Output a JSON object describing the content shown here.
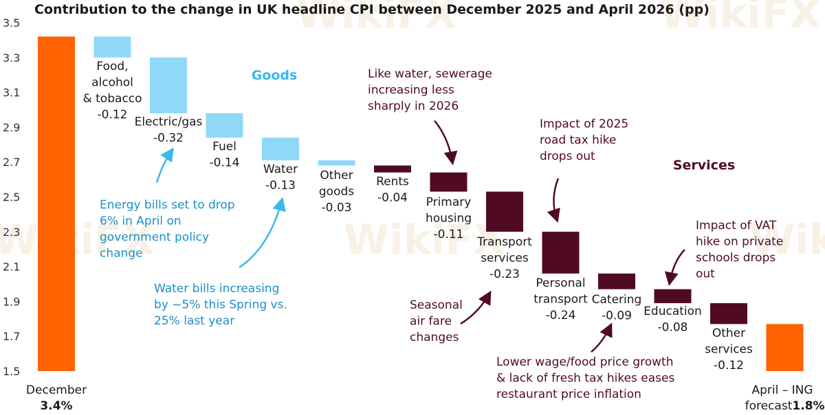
{
  "chart_data": {
    "type": "waterfall",
    "title": "Contribution to the change in UK headline CPI between December 2025 and April 2026 (pp)",
    "ylim": [
      1.5,
      3.5
    ],
    "yticks": [
      "3.5",
      "3.3",
      "3.1",
      "2.9",
      "2.7",
      "2.5",
      "2.3",
      "2.1",
      "1.9",
      "1.7",
      "1.5"
    ],
    "start": {
      "label": "December",
      "value": 3.42,
      "value_label": "3.4%"
    },
    "end": {
      "label_line1": "April – ING",
      "label_line2": "forecast",
      "value": 1.77,
      "value_label": "1.8%"
    },
    "steps": [
      {
        "lines": [
          "Food,",
          "alcohol",
          "& tobacco",
          "-0.12"
        ],
        "value": -0.12,
        "group": "goods"
      },
      {
        "lines": [
          "Electric/gas",
          "-0.32"
        ],
        "value": -0.32,
        "group": "goods"
      },
      {
        "lines": [
          "Fuel",
          "-0.14"
        ],
        "value": -0.14,
        "group": "goods"
      },
      {
        "lines": [
          "Water",
          "-0.13"
        ],
        "value": -0.13,
        "group": "goods"
      },
      {
        "lines": [
          "Other",
          "goods",
          "-0.03"
        ],
        "value": -0.03,
        "group": "goods"
      },
      {
        "lines": [
          "Rents",
          "-0.04"
        ],
        "value": -0.04,
        "group": "services"
      },
      {
        "lines": [
          "Primary",
          "housing",
          "-0.11"
        ],
        "value": -0.11,
        "group": "services"
      },
      {
        "lines": [
          "Transport",
          "services",
          "-0.23"
        ],
        "value": -0.23,
        "group": "services"
      },
      {
        "lines": [
          "Personal",
          "transport",
          "-0.24"
        ],
        "value": -0.24,
        "group": "services"
      },
      {
        "lines": [
          "Catering",
          "-0.09"
        ],
        "value": -0.09,
        "group": "services"
      },
      {
        "lines": [
          "Education",
          "-0.08"
        ],
        "value": -0.08,
        "group": "services"
      },
      {
        "lines": [
          "Other",
          "services",
          "-0.12"
        ],
        "value": -0.12,
        "group": "services"
      }
    ],
    "section_labels": {
      "goods": "Goods",
      "services": "Services"
    },
    "annotations": [
      {
        "id": "energy",
        "lines": [
          "Energy bills set to drop",
          "6% in April on",
          "government policy",
          "change"
        ],
        "group": "goods"
      },
      {
        "id": "water",
        "lines": [
          "Water bills increasing",
          "by ~5% this Spring vs.",
          "25% last year"
        ],
        "group": "goods"
      },
      {
        "id": "sewerage",
        "lines": [
          "Like water, sewerage",
          "increasing less",
          "sharply in 2026"
        ],
        "group": "services"
      },
      {
        "id": "roadtax",
        "lines": [
          "Impact of 2025",
          "road tax hike",
          "drops out"
        ],
        "group": "services"
      },
      {
        "id": "vat",
        "lines": [
          "Impact of VAT",
          "hike on private",
          "schools drops",
          "out"
        ],
        "group": "services"
      },
      {
        "id": "airfare",
        "lines": [
          "Seasonal",
          "air fare",
          "changes"
        ],
        "group": "services"
      },
      {
        "id": "wage",
        "lines": [
          "Lower wage/food price growth",
          "& lack of fresh tax hikes eases",
          "restaurant price inflation"
        ],
        "group": "services"
      }
    ],
    "colors": {
      "total": "#ff6200",
      "goods": "#8fd8f8",
      "services": "#500a24",
      "goods_text": "#1a8fc8",
      "goods_heading": "#3cb7ee",
      "services_text": "#500a24",
      "total_text": "#ff6200"
    },
    "watermark": "WikiFX"
  }
}
